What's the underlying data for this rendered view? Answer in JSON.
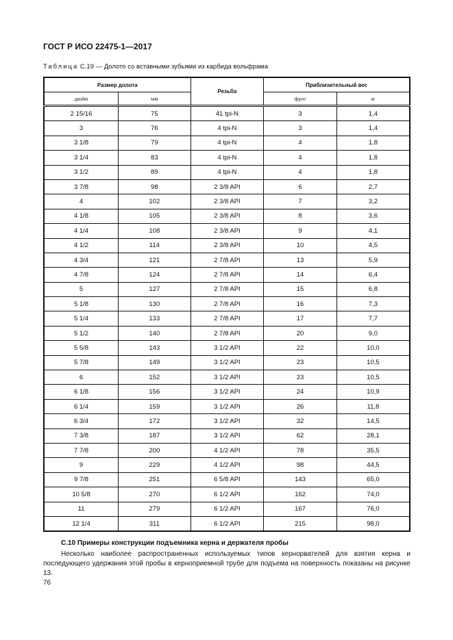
{
  "header": "ГОСТ Р ИСО 22475-1—2017",
  "caption": {
    "prefix": "Таблица",
    "text": " С.19 — Долото со вставными зубьями из карбида вольфрама"
  },
  "table": {
    "group1": "Размер долота",
    "group2": "Резьба",
    "group3": "Приблизительный вес",
    "sub": [
      "дюйм",
      "мм",
      "фунт",
      "кг"
    ],
    "rows": [
      [
        "2 15/16",
        "75",
        "41 tpi-N",
        "3",
        "1,4"
      ],
      [
        "3",
        "76",
        "4 tpi-N",
        "3",
        "1,4"
      ],
      [
        "3 1/8",
        "79",
        "4 tpi-N",
        "4",
        "1,8"
      ],
      [
        "3 1/4",
        "83",
        "4 tpi-N",
        "4",
        "1,8"
      ],
      [
        "3 1/2",
        "89",
        "4 tpi-N",
        "4",
        "1,8"
      ],
      [
        "3 7/8",
        "98",
        "2 3/8 API",
        "6",
        "2,7"
      ],
      [
        "4",
        "102",
        "2 3/8 API",
        "7",
        "3,2"
      ],
      [
        "4 1/8",
        "105",
        "2 3/8 API",
        "8",
        "3,6"
      ],
      [
        "4 1/4",
        "108",
        "2 3/8 API",
        "9",
        "4,1"
      ],
      [
        "4 1/2",
        "114",
        "2 3/8 API",
        "10",
        "4,5"
      ],
      [
        "4 3/4",
        "121",
        "2 7/8 API",
        "13",
        "5,9"
      ],
      [
        "4 7/8",
        "124",
        "2 7/8 API",
        "14",
        "6,4"
      ],
      [
        "5",
        "127",
        "2 7/8 API",
        "15",
        "6,8"
      ],
      [
        "5 1/8",
        "130",
        "2 7/8 API",
        "16",
        "7,3"
      ],
      [
        "5 1/4",
        "133",
        "2 7/8 API",
        "17",
        "7,7"
      ],
      [
        "5 1/2",
        "140",
        "2 7/8 API",
        "20",
        "9,0"
      ],
      [
        "5 5/8",
        "143",
        "3 1/2 API",
        "22",
        "10,0"
      ],
      [
        "5 7/8",
        "149",
        "3 1/2 API",
        "23",
        "10,5"
      ],
      [
        "6",
        "152",
        "3 1/2 API",
        "23",
        "10,5"
      ],
      [
        "6 1/8",
        "156",
        "3 1/2 API",
        "24",
        "10,9"
      ],
      [
        "6 1/4",
        "159",
        "3 1/2 API",
        "26",
        "11,8"
      ],
      [
        "6 3/4",
        "172",
        "3 1/2 API",
        "32",
        "14,5"
      ],
      [
        "7 3/8",
        "187",
        "3 1/2 API",
        "62",
        "28,1"
      ],
      [
        "7 7/8",
        "200",
        "4 1/2 API",
        "78",
        "35,5"
      ],
      [
        "9",
        "229",
        "4 1/2 API",
        "98",
        "44,5"
      ],
      [
        "9 7/8",
        "251",
        "6 5/8 API",
        "143",
        "65,0"
      ],
      [
        "10 5/8",
        "270",
        "6 1/2 API",
        "162",
        "74,0"
      ],
      [
        "11",
        "279",
        "6 1/2 API",
        "167",
        "76,0"
      ],
      [
        "12 1/4",
        "311",
        "6 1/2 API",
        "215",
        "98,0"
      ]
    ]
  },
  "section_title": "С.10 Примеры конструкции подъемника керна и держателя пробы",
  "paragraph": "Несколько наиболее распространенных используемых типов кернорвателей для взятия керна и последующего удержания этой пробы в керноприемной трубе для подъема на поверхность показаны на рисунке 13.",
  "page_number": "76"
}
